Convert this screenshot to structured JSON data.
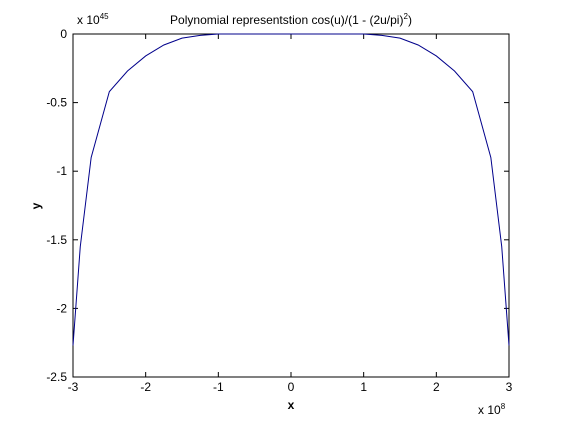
{
  "chart_data": {
    "type": "line",
    "title": "Polynomial representstion cos(u)/(1 - (2u/pi)",
    "title_superscript": "2",
    "title_end": ")",
    "xlabel": "x",
    "ylabel": "y",
    "x_multiplier": "x 10",
    "x_exponent": "8",
    "y_multiplier": "x 10",
    "y_exponent": "45",
    "xlim": [
      -3,
      3
    ],
    "xticks": [
      -3,
      -2,
      -1,
      0,
      1,
      2,
      3
    ],
    "ylim": [
      -2.5,
      0
    ],
    "yticks": [
      -2.5,
      -2,
      -1.5,
      -1,
      -0.5,
      0
    ],
    "grid": false,
    "series": [
      {
        "color": "#00008b",
        "x": [
          -3,
          -2.9,
          -2.75,
          -2.5,
          -2.25,
          -2,
          -1.75,
          -1.5,
          -1.25,
          -1,
          0,
          1,
          1.25,
          1.5,
          1.75,
          2,
          2.25,
          2.5,
          2.75,
          2.9,
          3
        ],
        "values": [
          -2.27,
          -1.55,
          -0.9,
          -0.42,
          -0.27,
          -0.16,
          -0.08,
          -0.03,
          -0.01,
          0,
          0,
          0,
          -0.01,
          -0.03,
          -0.08,
          -0.16,
          -0.27,
          -0.42,
          -0.9,
          -1.55,
          -2.27
        ]
      }
    ]
  }
}
